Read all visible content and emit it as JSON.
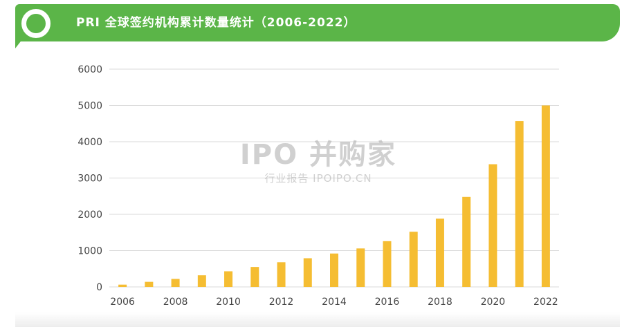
{
  "header": {
    "title": "PRI 全球签约机构累计数量统计（2006-2022）"
  },
  "watermark": {
    "main": "IPO 并购家",
    "sub": "行业报告 IPOIPO.CN"
  },
  "colors": {
    "banner": "#5bb548",
    "bar": "#f5bd32",
    "grid": "#d9d9d9",
    "axis_text": "#444444"
  },
  "chart_data": {
    "type": "bar",
    "categories": [
      "2006",
      "2007",
      "2008",
      "2009",
      "2010",
      "2011",
      "2012",
      "2013",
      "2014",
      "2015",
      "2016",
      "2017",
      "2018",
      "2019",
      "2020",
      "2021",
      "2022"
    ],
    "values": [
      63,
      140,
      220,
      320,
      430,
      550,
      680,
      790,
      920,
      1060,
      1260,
      1520,
      1880,
      2480,
      3380,
      4570,
      5000
    ],
    "x_tick_labels": [
      "2006",
      "2008",
      "2010",
      "2012",
      "2014",
      "2016",
      "2018",
      "2020",
      "2022"
    ],
    "y_ticks": [
      0,
      1000,
      2000,
      3000,
      4000,
      5000,
      6000
    ],
    "ylim": [
      0,
      6000
    ],
    "grid": true,
    "legend": "none"
  }
}
